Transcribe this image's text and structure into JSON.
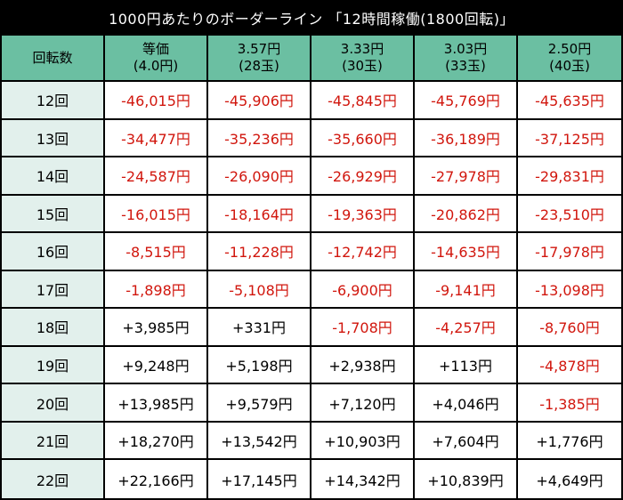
{
  "title": "1000円あたりのボーダーライン 「12時間稼働(1800回転)」",
  "header": {
    "col0": "回転数",
    "cols": [
      {
        "line1": "等価",
        "line2": "(4.0円)"
      },
      {
        "line1": "3.57円",
        "line2": "(28玉)"
      },
      {
        "line1": "3.33円",
        "line2": "(30玉)"
      },
      {
        "line1": "3.03円",
        "line2": "(33玉)"
      },
      {
        "line1": "2.50円",
        "line2": "(40玉)"
      }
    ]
  },
  "rows": [
    {
      "label": "12回",
      "values": [
        "-46,015円",
        "-45,906円",
        "-45,845円",
        "-45,769円",
        "-45,635円"
      ]
    },
    {
      "label": "13回",
      "values": [
        "-34,477円",
        "-35,236円",
        "-35,660円",
        "-36,189円",
        "-37,125円"
      ]
    },
    {
      "label": "14回",
      "values": [
        "-24,587円",
        "-26,090円",
        "-26,929円",
        "-27,978円",
        "-29,831円"
      ]
    },
    {
      "label": "15回",
      "values": [
        "-16,015円",
        "-18,164円",
        "-19,363円",
        "-20,862円",
        "-23,510円"
      ]
    },
    {
      "label": "16回",
      "values": [
        "-8,515円",
        "-11,228円",
        "-12,742円",
        "-14,635円",
        "-17,978円"
      ]
    },
    {
      "label": "17回",
      "values": [
        "-1,898円",
        "-5,108円",
        "-6,900円",
        "-9,141円",
        "-13,098円"
      ]
    },
    {
      "label": "18回",
      "values": [
        "+3,985円",
        "+331円",
        "-1,708円",
        "-4,257円",
        "-8,760円"
      ]
    },
    {
      "label": "19回",
      "values": [
        "+9,248円",
        "+5,198円",
        "+2,938円",
        "+113円",
        "-4,878円"
      ]
    },
    {
      "label": "20回",
      "values": [
        "+13,985円",
        "+9,579円",
        "+7,120円",
        "+4,046円",
        "-1,385円"
      ]
    },
    {
      "label": "21回",
      "values": [
        "+18,270円",
        "+13,542円",
        "+10,903円",
        "+7,604円",
        "+1,776円"
      ]
    },
    {
      "label": "22回",
      "values": [
        "+22,166円",
        "+17,145円",
        "+14,342円",
        "+10,839円",
        "+4,649円"
      ]
    }
  ],
  "colors": {
    "header_bg": "#6bbfa2",
    "row_label_bg": "#e2f0ec",
    "negative_text": "#d1160d",
    "positive_text": "#000000",
    "title_bg": "#000000",
    "title_text": "#ffffff"
  }
}
